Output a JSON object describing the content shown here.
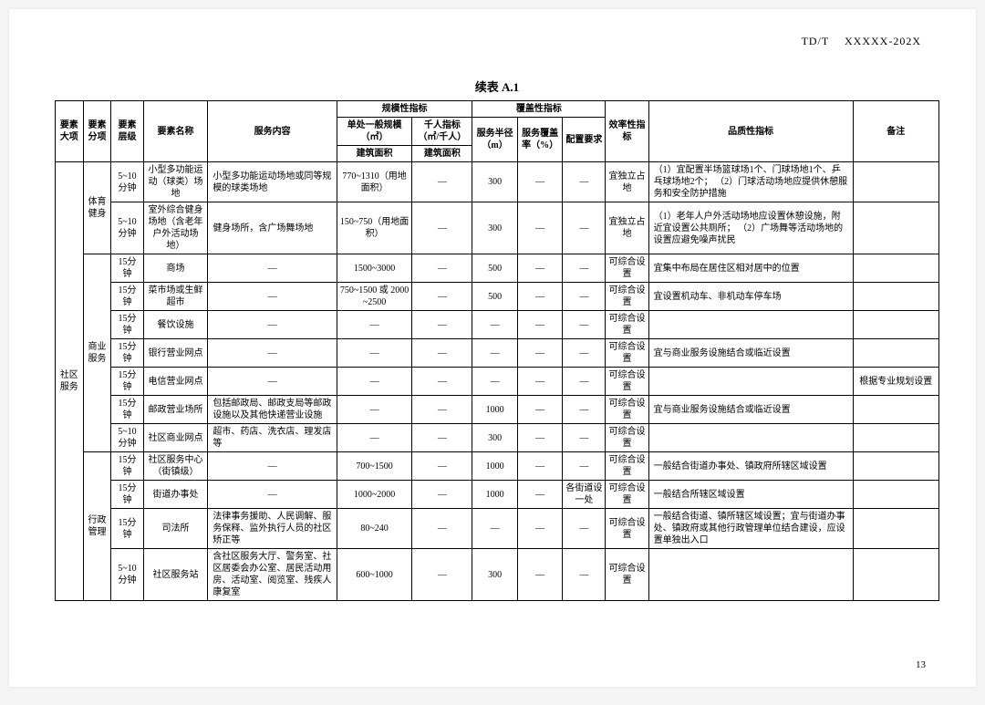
{
  "doc_id": "TD/T  XXXXX-202X",
  "page_num": "13",
  "title": "续表 A.1",
  "header": {
    "h1": "要素大项",
    "h2": "要素分项",
    "h3": "要素层级",
    "h4": "要素名称",
    "h5": "服务内容",
    "grp_scale": "规模性指标",
    "grp_cover": "覆盖性指标",
    "h6a": "单处一般规模（㎡）",
    "h6b": "千人指标（㎡/千人）",
    "h6a_sub": "建筑面积",
    "h6b_sub": "建筑面积",
    "h7": "服务半径（m）",
    "h8": "服务覆盖率（%）",
    "h9": "配置要求",
    "h10": "效率性指标",
    "h11": "品质性指标",
    "h12": "备注"
  },
  "major": "社区服务",
  "sections": {
    "sport": {
      "label": "体育健身",
      "r1": {
        "lvl": "5~10分钟",
        "name": "小型多功能运动（球类）场地",
        "svc": "小型多功能运动场地或同等规模的球类场地",
        "scale": "770~1310（用地面积）",
        "qk": "—",
        "rad": "300",
        "cov": "—",
        "cfg": "—",
        "eff": "宜独立占地",
        "qual": "（1）宜配置半场篮球场1个、门球场地1个、乒乓球场地2个；\n（2）门球活动场地应提供休憩服务和安全防护措施",
        "note": ""
      },
      "r2": {
        "lvl": "5~10分钟",
        "name": "室外综合健身场地（含老年户外活动场地）",
        "svc": "健身场所，含广场舞场地",
        "scale": "150~750（用地面积）",
        "qk": "—",
        "rad": "300",
        "cov": "—",
        "cfg": "—",
        "eff": "宜独立占地",
        "qual": "（1）老年人户外活动场地应设置休憩设施，附近宜设置公共厕所；\n（2）广场舞等活动场地的设置应避免噪声扰民",
        "note": ""
      }
    },
    "biz": {
      "label": "商业服务",
      "r1": {
        "lvl": "15分钟",
        "name": "商场",
        "svc": "—",
        "scale": "1500~3000",
        "qk": "—",
        "rad": "500",
        "cov": "—",
        "cfg": "—",
        "eff": "可综合设置",
        "qual": "宜集中布局在居住区相对居中的位置",
        "note": ""
      },
      "r2": {
        "lvl": "15分钟",
        "name": "菜市场或生鲜超市",
        "svc": "—",
        "scale": "750~1500 或 2000~2500",
        "qk": "—",
        "rad": "500",
        "cov": "—",
        "cfg": "—",
        "eff": "可综合设置",
        "qual": "宜设置机动车、非机动车停车场",
        "note": ""
      },
      "r3": {
        "lvl": "15分钟",
        "name": "餐饮设施",
        "svc": "—",
        "scale": "—",
        "qk": "—",
        "rad": "—",
        "cov": "—",
        "cfg": "—",
        "eff": "可综合设置",
        "qual": "",
        "note": ""
      },
      "r4": {
        "lvl": "15分钟",
        "name": "银行营业网点",
        "svc": "—",
        "scale": "—",
        "qk": "—",
        "rad": "—",
        "cov": "—",
        "cfg": "—",
        "eff": "可综合设置",
        "qual": "宜与商业服务设施结合或临近设置",
        "note": ""
      },
      "r5": {
        "lvl": "15分钟",
        "name": "电信营业网点",
        "svc": "—",
        "scale": "—",
        "qk": "—",
        "rad": "—",
        "cov": "—",
        "cfg": "—",
        "eff": "可综合设置",
        "qual": "",
        "note": "根据专业规划设置"
      },
      "r6": {
        "lvl": "15分钟",
        "name": "邮政营业场所",
        "svc": "包括邮政局、邮政支局等邮政设施以及其他快递营业设施",
        "scale": "—",
        "qk": "—",
        "rad": "1000",
        "cov": "—",
        "cfg": "—",
        "eff": "可综合设置",
        "qual": "宜与商业服务设施结合或临近设置",
        "note": ""
      },
      "r7": {
        "lvl": "5~10分钟",
        "name": "社区商业网点",
        "svc": "超市、药店、洗衣店、理发店等",
        "scale": "—",
        "qk": "—",
        "rad": "300",
        "cov": "—",
        "cfg": "—",
        "eff": "可综合设置",
        "qual": "",
        "note": ""
      }
    },
    "admin": {
      "label": "行政管理",
      "r1": {
        "lvl": "15分钟",
        "name": "社区服务中心（街镇级）",
        "svc": "—",
        "scale": "700~1500",
        "qk": "—",
        "rad": "1000",
        "cov": "—",
        "cfg": "—",
        "eff": "可综合设置",
        "qual": "一般结合街道办事处、镇政府所辖区域设置",
        "note": ""
      },
      "r2": {
        "lvl": "15分钟",
        "name": "街道办事处",
        "svc": "—",
        "scale": "1000~2000",
        "qk": "—",
        "rad": "1000",
        "cov": "—",
        "cfg": "各街道设一处",
        "eff": "可综合设置",
        "qual": "一般结合所辖区域设置",
        "note": ""
      },
      "r3": {
        "lvl": "15分钟",
        "name": "司法所",
        "svc": "法律事务援助、人民调解、服务保释、监外执行人员的社区矫正等",
        "scale": "80~240",
        "qk": "—",
        "rad": "—",
        "cov": "—",
        "cfg": "—",
        "eff": "可综合设置",
        "qual": "一般结合街道、镇所辖区域设置；宜与街道办事处、镇政府或其他行政管理单位结合建设，应设置单独出入口",
        "note": ""
      },
      "r4": {
        "lvl": "5~10分钟",
        "name": "社区服务站",
        "svc": "含社区服务大厅、警务室、社区居委会办公室、居民活动用房、活动室、阅览室、残疾人康复室",
        "scale": "600~1000",
        "qk": "—",
        "rad": "300",
        "cov": "—",
        "cfg": "—",
        "eff": "可综合设置",
        "qual": "",
        "note": ""
      }
    }
  }
}
